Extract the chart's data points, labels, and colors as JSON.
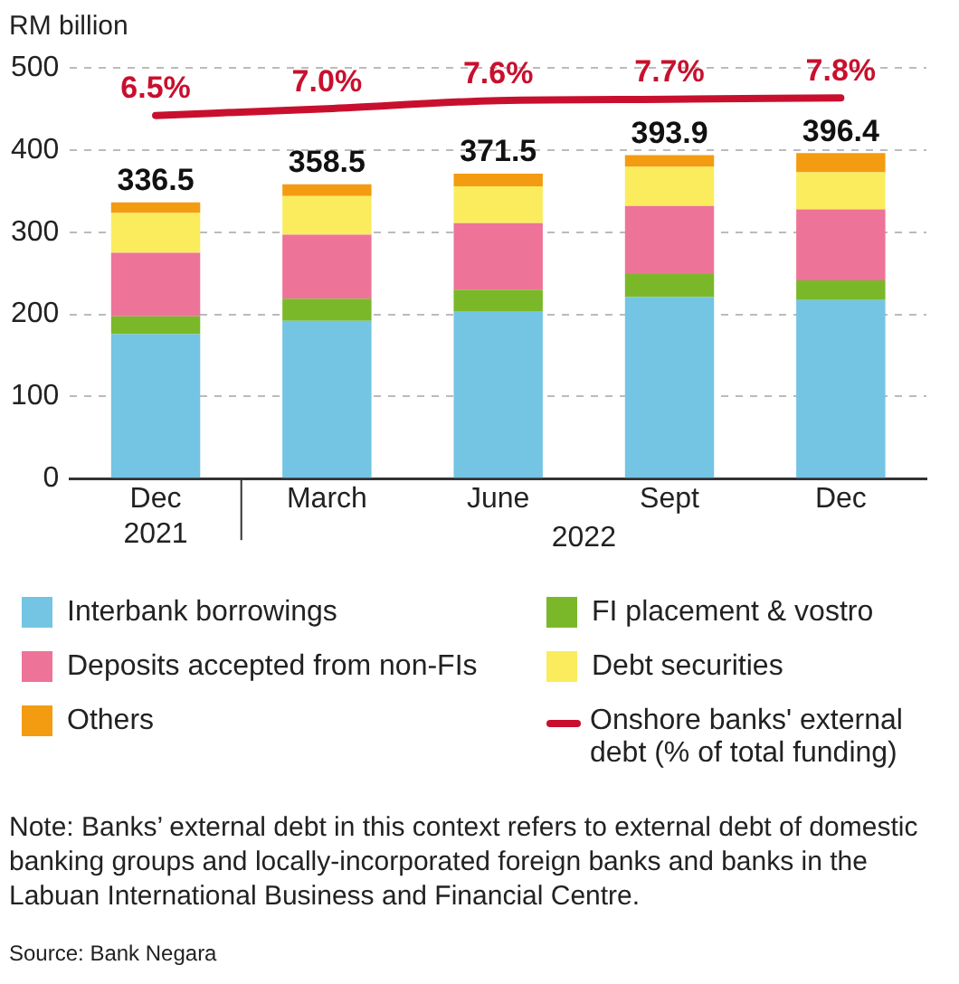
{
  "chart_data": {
    "type": "bar",
    "stacked": true,
    "ylabel": "RM billion",
    "categories": [
      "Dec\n2021",
      "March",
      "June",
      "Sept",
      "Dec"
    ],
    "series": [
      {
        "name": "Interbank borrowings",
        "color": "#74c4e3",
        "values": [
          176,
          192,
          204,
          221,
          217.5
        ]
      },
      {
        "name": "FI placement & vostro",
        "color": "#7ab829",
        "values": [
          21.5,
          27,
          26,
          28,
          24
        ]
      },
      {
        "name": "Deposits accepted from non-FIs",
        "color": "#ee7399",
        "values": [
          77.5,
          78,
          81,
          83,
          86.5
        ]
      },
      {
        "name": "Debt securities",
        "color": "#fbec5d",
        "values": [
          48.5,
          47,
          45,
          47.5,
          45
        ]
      },
      {
        "name": "Others",
        "color": "#f39c12",
        "values": [
          13,
          14.5,
          15.5,
          14.4,
          23.4
        ]
      },
      {
        "name": "Onshore banks' external debt (% of total funding)",
        "type": "line",
        "axis": "y2",
        "color": "#c8102e",
        "marker": "none",
        "values": [
          6.5,
          7.0,
          7.6,
          7.7,
          7.8
        ],
        "value_labels": [
          "6.5%",
          "7.0%",
          "7.6%",
          "7.7%",
          "7.8%"
        ]
      }
    ],
    "totals": [
      "336.5",
      "358.5",
      "371.5",
      "393.9",
      "396.4"
    ],
    "ylim": [
      0,
      500
    ],
    "yticks": [
      0,
      100,
      200,
      300,
      400,
      500
    ],
    "y2lim": [
      -20.3,
      10
    ],
    "tick_labels": "xy",
    "grid": "y",
    "legend": "bottom",
    "annotations": [
      "2022",
      "Note: Banks’ external debt in this context refers to external debt of domestic banking groups and locally-incorporated foreign banks and banks in the Labuan International Business and Financial Centre.",
      "Source: Bank Negara"
    ]
  }
}
